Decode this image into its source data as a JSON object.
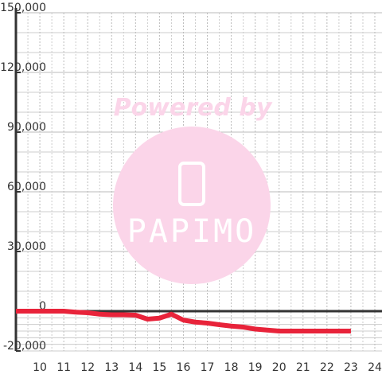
{
  "chart_data": {
    "type": "line",
    "watermark": {
      "text": "Powered by",
      "logo": "PAPIMO"
    },
    "x": [
      9,
      10,
      11,
      11.5,
      12,
      12.5,
      13,
      13.5,
      14,
      14.5,
      15,
      15.5,
      16,
      16.5,
      17,
      17.5,
      18,
      18.5,
      19,
      19.5,
      20,
      21,
      22,
      23
    ],
    "series": [
      {
        "color": "#e8233a",
        "values": [
          0,
          0,
          0,
          -500,
          -800,
          -1500,
          -1800,
          -1800,
          -2000,
          -4000,
          -3500,
          -1500,
          -4500,
          -5500,
          -6000,
          -6800,
          -7500,
          -8000,
          -9000,
          -9500,
          -10000,
          -10000,
          -10000,
          -10000
        ]
      }
    ],
    "xlim": [
      9,
      24.3
    ],
    "xticks": [
      10,
      11,
      12,
      13,
      14,
      15,
      16,
      17,
      18,
      19,
      20,
      21,
      22,
      23,
      24
    ],
    "ylim": [
      -20000,
      150000
    ],
    "yticks": [
      {
        "value": -20000,
        "label": "-20,000"
      },
      {
        "value": 0,
        "label": "0"
      },
      {
        "value": 30000,
        "label": "30,000"
      },
      {
        "value": 60000,
        "label": "60,000"
      },
      {
        "value": 90000,
        "label": "90,000"
      },
      {
        "value": 120000,
        "label": "120,000"
      },
      {
        "value": 150000,
        "label": "150,000"
      }
    ],
    "grid": true
  }
}
